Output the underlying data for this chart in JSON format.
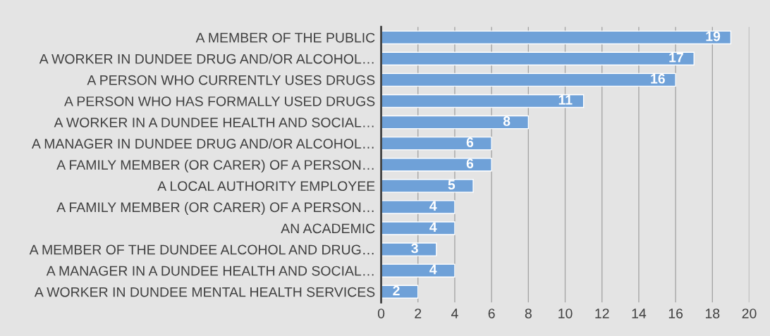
{
  "chart_data": {
    "type": "bar",
    "orientation": "horizontal",
    "categories": [
      "A MEMBER OF THE PUBLIC",
      "A WORKER IN DUNDEE DRUG AND/OR ALCOHOL…",
      "A PERSON WHO CURRENTLY USES DRUGS",
      "A PERSON WHO HAS FORMALLY USED DRUGS",
      "A WORKER IN A DUNDEE HEALTH AND SOCIAL…",
      "A MANAGER IN DUNDEE DRUG AND/OR ALCOHOL…",
      "A FAMILY MEMBER (OR CARER) OF A PERSON…",
      "A LOCAL AUTHORITY EMPLOYEE",
      "A FAMILY MEMBER (OR CARER) OF A PERSON…",
      "AN ACADEMIC",
      "A MEMBER OF THE DUNDEE ALCOHOL AND DRUG…",
      "A MANAGER IN A DUNDEE HEALTH AND SOCIAL…",
      "A WORKER IN DUNDEE MENTAL HEALTH SERVICES"
    ],
    "values": [
      19,
      17,
      16,
      11,
      8,
      6,
      6,
      5,
      4,
      4,
      3,
      4,
      2
    ],
    "color": "#6fa1d8",
    "xlim": [
      0,
      20
    ],
    "xticks": [
      0,
      2,
      4,
      6,
      8,
      10,
      12,
      14,
      16,
      18,
      20
    ],
    "grid": "x",
    "data_labels": true
  }
}
